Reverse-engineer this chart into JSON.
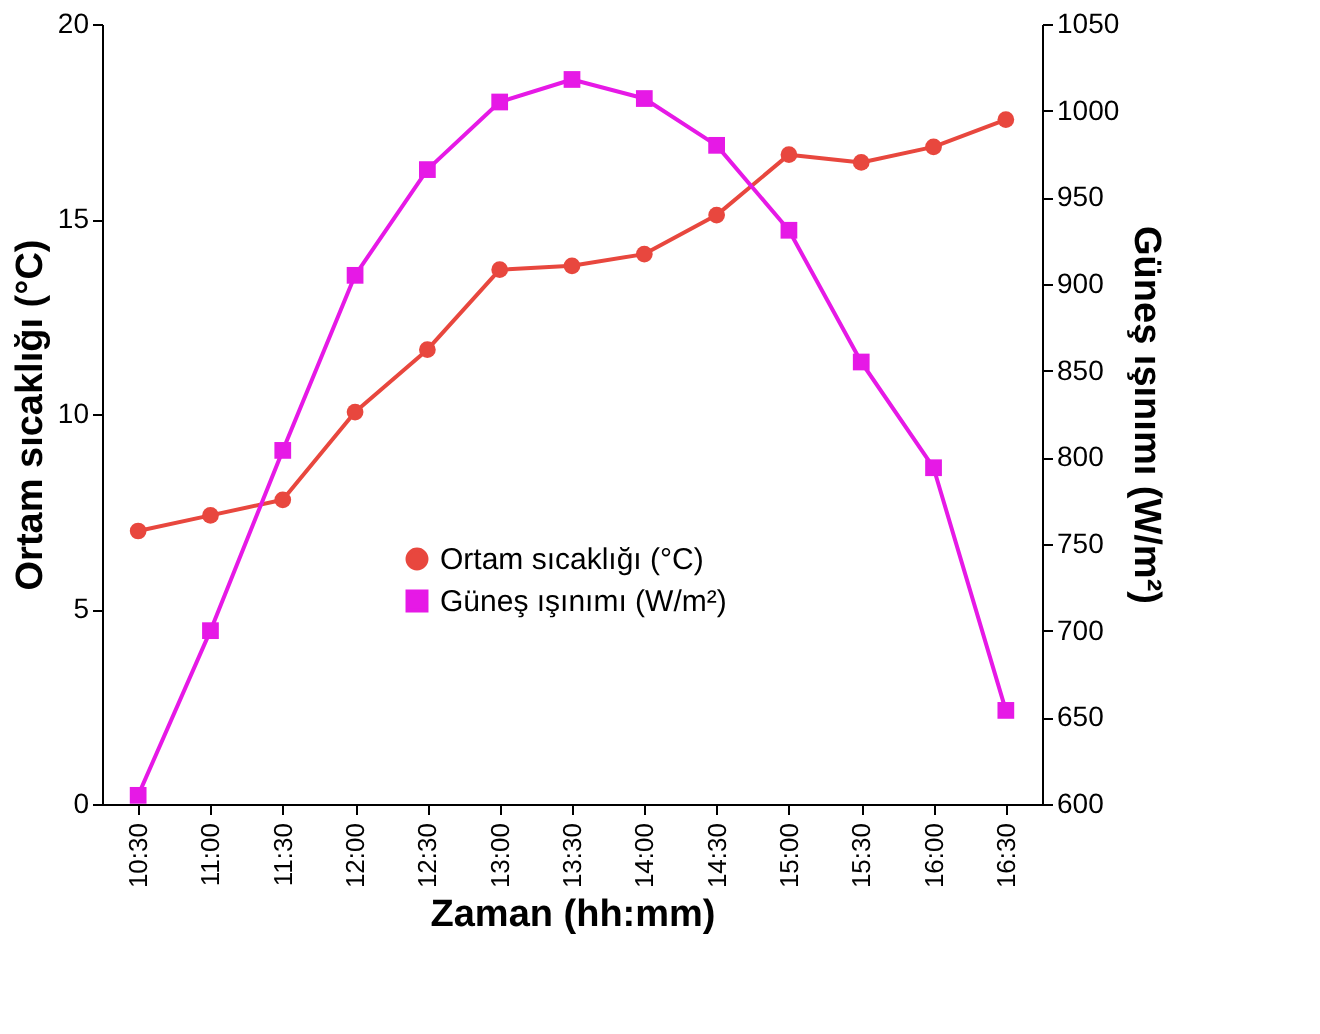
{
  "chart_data": {
    "type": "line",
    "xlabel": "Zaman (hh:mm)",
    "ylabel": "Ortam sıcaklığı (°C)",
    "y2label": "Güneş ışınımı (W/m²)",
    "categories": [
      "10:30",
      "11:00",
      "11:30",
      "12:00",
      "12:30",
      "13:00",
      "13:30",
      "14:00",
      "14:30",
      "15:00",
      "15:30",
      "16:00",
      "16:30"
    ],
    "series": [
      {
        "name": "Ortam sıcaklığı (°C)",
        "color": "#e8473e",
        "marker": "circle",
        "values": [
          7.0,
          7.4,
          7.8,
          10.05,
          11.65,
          13.7,
          13.8,
          14.1,
          15.1,
          16.65,
          16.45,
          16.85,
          17.55
        ]
      },
      {
        "name": "Güneş ışınımı (W/m²)",
        "color": "#e619e6",
        "marker": "square",
        "axis": "y2",
        "values": [
          605,
          700,
          804,
          905,
          966,
          1005,
          1018,
          1007,
          980,
          931,
          855,
          794,
          654
        ]
      }
    ],
    "ylim": [
      0,
      20
    ],
    "yticks": [
      0,
      5,
      10,
      15,
      20
    ],
    "y2lim": [
      600,
      1050
    ],
    "y2ticks": [
      600,
      650,
      700,
      750,
      800,
      850,
      900,
      950,
      1000,
      1050
    ],
    "grid": false,
    "legend": "bottom",
    "line_style": "solid"
  }
}
